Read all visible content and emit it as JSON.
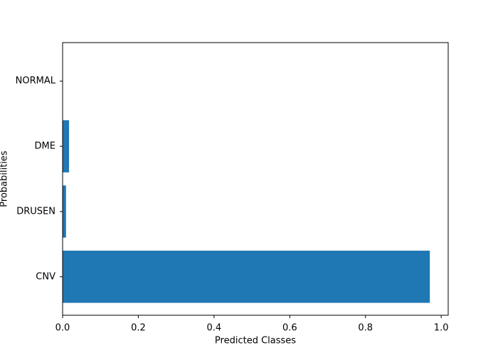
{
  "chart_data": {
    "type": "barh",
    "categories": [
      "CNV",
      "DRUSEN",
      "DME",
      "NORMAL"
    ],
    "values": [
      0.97,
      0.009,
      0.017,
      0.0004
    ],
    "color": "#1f77b4",
    "xlabel": "Predicted Classes",
    "ylabel": "Probabilities",
    "xlim": [
      0,
      1.0185
    ],
    "xticks": [
      {
        "value": 0,
        "label": "0.0"
      },
      {
        "value": 0.2,
        "label": "0.2"
      },
      {
        "value": 0.4,
        "label": "0.4"
      },
      {
        "value": 0.6,
        "label": "0.6"
      },
      {
        "value": 0.8,
        "label": "0.8"
      },
      {
        "value": 1,
        "label": "1.0"
      }
    ],
    "grid": false
  }
}
